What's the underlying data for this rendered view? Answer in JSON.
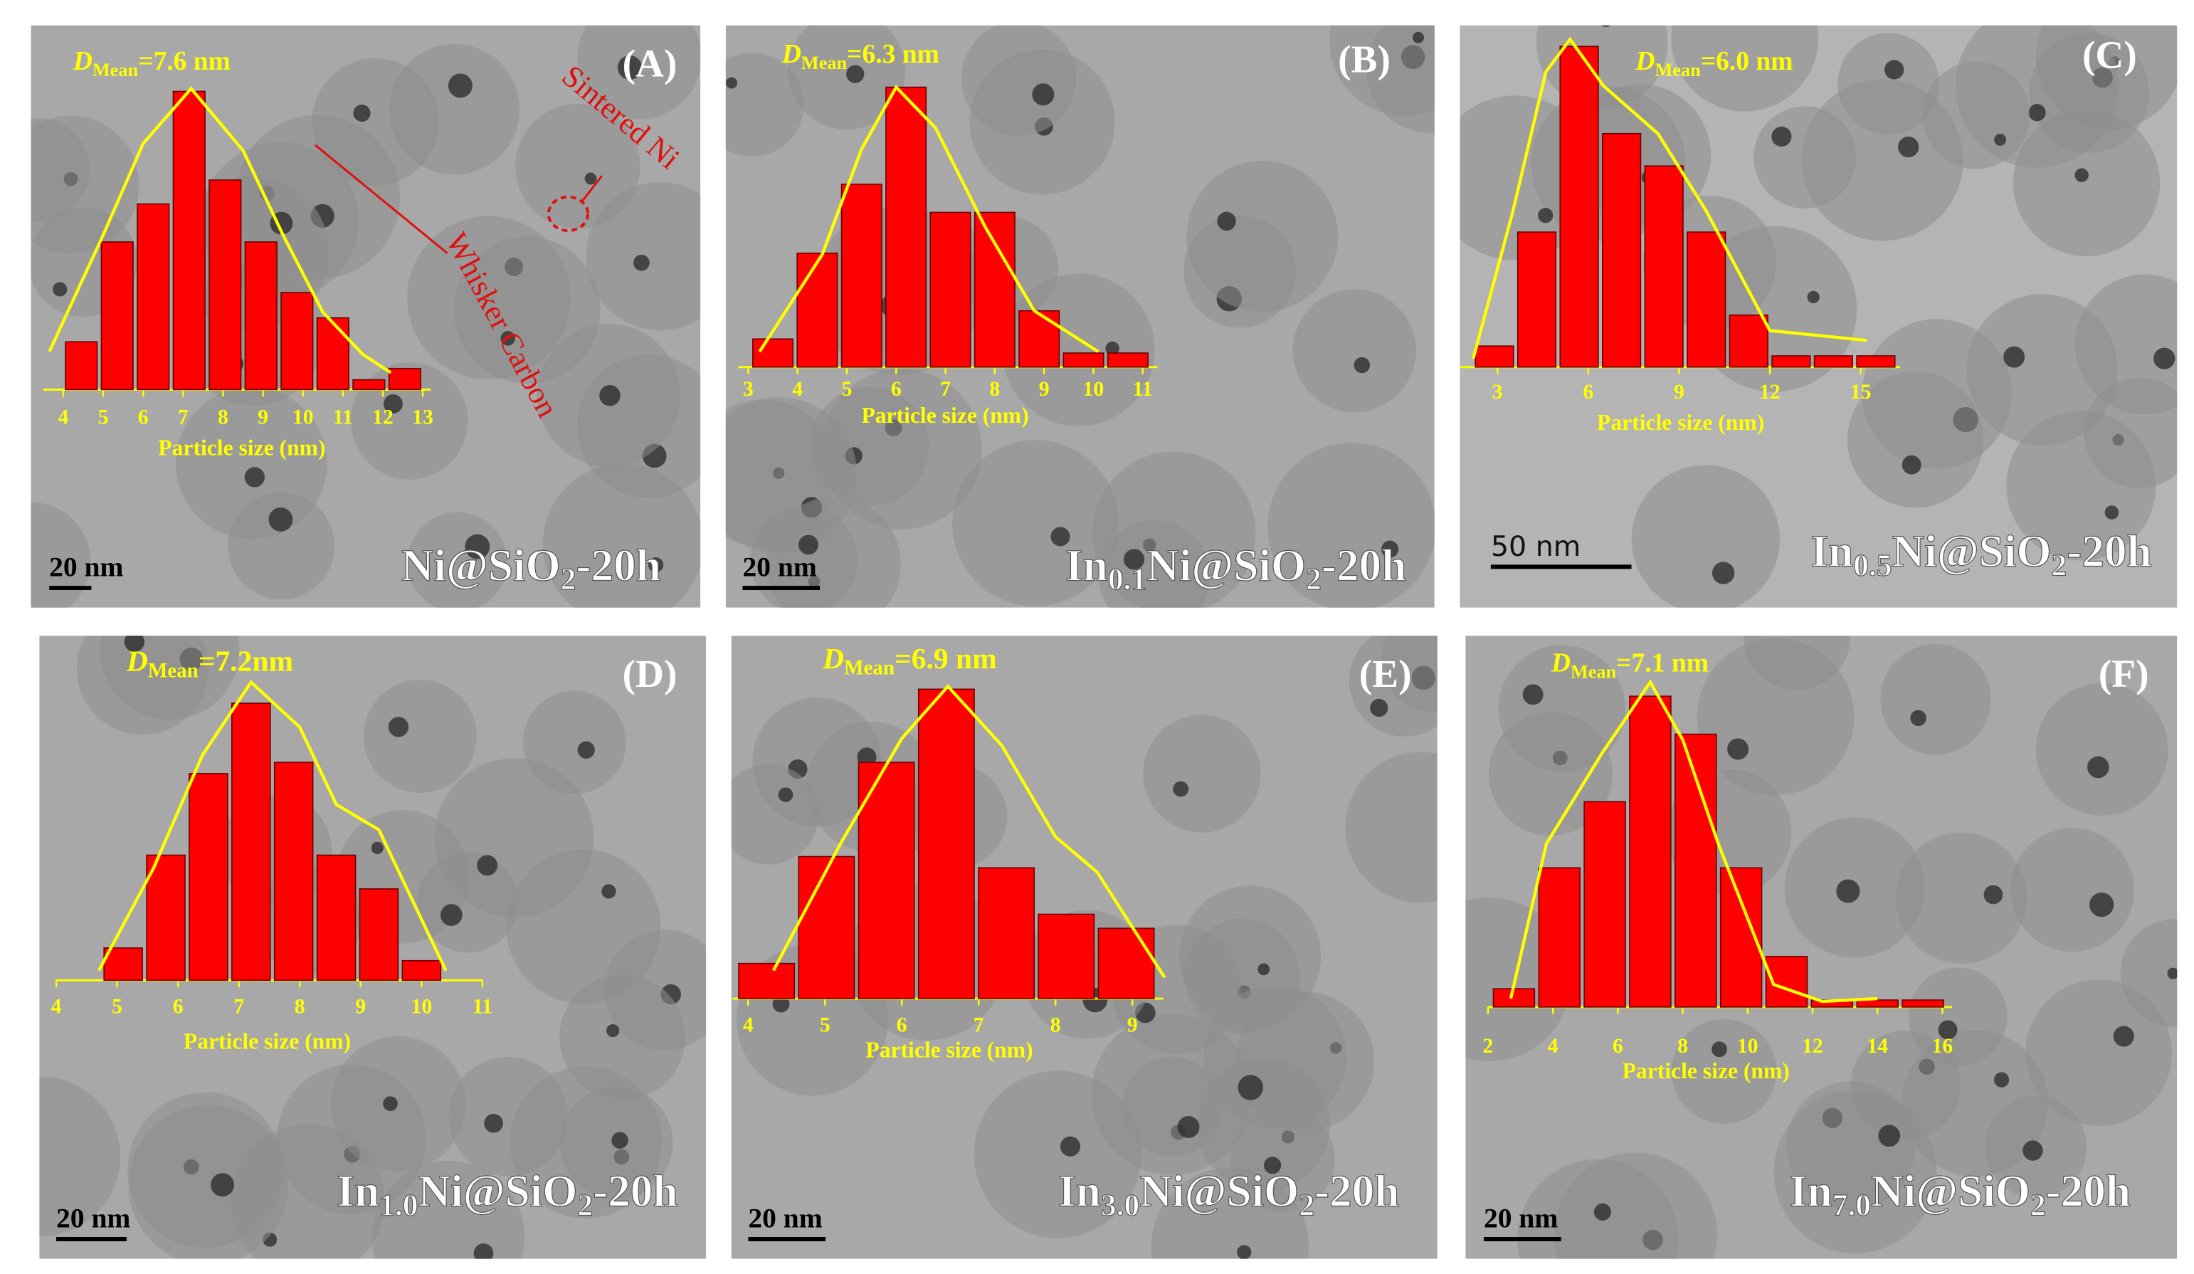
{
  "chart_data": [
    {
      "type": "histogram",
      "panel_label": "(A)",
      "mean_symbol": "D",
      "mean_subscript": "Mean",
      "mean_text": "=7.6 nm",
      "sample": [
        {
          "text": "Ni@SiO"
        },
        {
          "text": "2",
          "sub": true
        },
        {
          "text": "-20h"
        }
      ],
      "scale_bar": "20 nm",
      "x_label": "Particle size (nm)",
      "bins": [
        4,
        4.9,
        5.8,
        6.7,
        7.6,
        8.5,
        9.4,
        10.3,
        11.2,
        12.1,
        13
      ],
      "values": [
        34,
        105,
        132,
        212,
        149,
        105,
        69,
        51,
        7,
        15
      ],
      "color": "#ff0000",
      "xlim": [
        3.5,
        13.2
      ],
      "ylim": [
        0,
        240
      ],
      "xticks": [
        4,
        5,
        6,
        7,
        8,
        9,
        10,
        11,
        12,
        13
      ],
      "fit": {
        "x": [
          3.65,
          5,
          6,
          7.2,
          8.5,
          9.5,
          10.5,
          11.5,
          12.2
        ],
        "values": [
          27,
          110,
          175,
          214,
          170,
          110,
          55,
          25,
          12
        ],
        "color": "#ffff00"
      },
      "annotations": [
        "Sintered Ni",
        "Whisker Carbon"
      ]
    },
    {
      "type": "histogram",
      "panel_label": "(B)",
      "mean_symbol": "D",
      "mean_subscript": "Mean",
      "mean_text": "=6.3 nm",
      "sample": [
        {
          "text": "In"
        },
        {
          "text": "0.1",
          "sub": true
        },
        {
          "text": "Ni@SiO"
        },
        {
          "text": "2",
          "sub": true
        },
        {
          "text": "-20h"
        }
      ],
      "scale_bar": "20 nm",
      "x_label": "Particle size (nm)",
      "bins": [
        3.05,
        3.95,
        4.85,
        5.75,
        6.65,
        7.55,
        8.45,
        9.35,
        10.25,
        11.15
      ],
      "values": [
        20,
        81,
        130,
        199,
        110,
        110,
        40,
        10,
        10
      ],
      "color": "#ff0000",
      "xlim": [
        2.8,
        11.3
      ],
      "ylim": [
        0,
        240
      ],
      "xticks": [
        3,
        4,
        5,
        6,
        7,
        8,
        9,
        10,
        11
      ],
      "fit": {
        "x": [
          3.23,
          4.5,
          5.3,
          6,
          6.8,
          7.8,
          8.8,
          10.1
        ],
        "values": [
          11,
          80,
          155,
          199,
          170,
          100,
          40,
          11
        ],
        "color": "#ffff00"
      }
    },
    {
      "type": "histogram",
      "panel_label": "(C)",
      "mean_symbol": "D",
      "mean_subscript": "Mean",
      "mean_text": "=6.0 nm",
      "sample": [
        {
          "text": "In"
        },
        {
          "text": "0.5",
          "sub": true
        },
        {
          "text": "Ni@SiO"
        },
        {
          "text": "2",
          "sub": true
        },
        {
          "text": "-20h"
        }
      ],
      "scale_bar": "50 nm",
      "x_label": "Particle size (nm)",
      "bins": [
        2.2,
        3.6,
        5.0,
        6.4,
        7.8,
        9.2,
        10.6,
        12.0,
        13.4,
        14.8,
        16.2
      ],
      "values": [
        15,
        96,
        228,
        166,
        143,
        96,
        37,
        8,
        8,
        8
      ],
      "color": "#ff0000",
      "xlim": [
        1.6,
        16.3
      ],
      "ylim": [
        0,
        240
      ],
      "xticks": [
        3,
        6,
        9,
        12,
        15
      ],
      "fit": {
        "x": [
          2.2,
          3.5,
          4.6,
          5.4,
          6.5,
          8.3,
          9.9,
          12,
          15.2
        ],
        "values": [
          6,
          110,
          210,
          233,
          200,
          166,
          111,
          26,
          19
        ],
        "color": "#ffff00"
      }
    },
    {
      "type": "histogram",
      "panel_label": "(D)",
      "mean_symbol": "D",
      "mean_subscript": "Mean",
      "mean_text": "=7.2nm",
      "sample": [
        {
          "text": "In"
        },
        {
          "text": "1.0",
          "sub": true
        },
        {
          "text": "Ni@SiO"
        },
        {
          "text": "2",
          "sub": true
        },
        {
          "text": "-20h"
        }
      ],
      "scale_bar": "20 nm",
      "x_label": "Particle size (nm)",
      "bins": [
        4.75,
        5.45,
        6.15,
        6.85,
        7.55,
        8.25,
        8.95,
        9.65,
        10.35
      ],
      "values": [
        23,
        89,
        147,
        197,
        155,
        89,
        65,
        14
      ],
      "color": "#ff0000",
      "xlim": [
        4,
        11
      ],
      "ylim": [
        0,
        240
      ],
      "xticks": [
        4,
        5,
        6,
        7,
        8,
        9,
        10,
        11
      ],
      "fit": {
        "x": [
          4.7,
          5.6,
          6.4,
          7.2,
          8,
          8.6,
          9.3,
          10.4
        ],
        "values": [
          7,
          80,
          160,
          212,
          180,
          125,
          107,
          7
        ],
        "color": "#ffff00"
      }
    },
    {
      "type": "histogram",
      "panel_label": "(E)",
      "mean_symbol": "D",
      "mean_subscript": "Mean",
      "mean_text": "=6.9 nm",
      "sample": [
        {
          "text": "In"
        },
        {
          "text": "3.0",
          "sub": true
        },
        {
          "text": "Ni@SiO"
        },
        {
          "text": "2",
          "sub": true
        },
        {
          "text": "-20h"
        }
      ],
      "scale_bar": "20 nm",
      "x_label": "Particle size (nm)",
      "bins": [
        3.85,
        4.63,
        5.41,
        6.19,
        6.97,
        7.75,
        8.53,
        9.31
      ],
      "values": [
        25,
        101,
        168,
        220,
        93,
        60,
        50
      ],
      "color": "#ff0000",
      "xlim": [
        3.8,
        9.4
      ],
      "ylim": [
        0,
        240
      ],
      "xticks": [
        4,
        5,
        6,
        7,
        8,
        9
      ],
      "fit": {
        "x": [
          4.33,
          5.2,
          6,
          6.6,
          7.3,
          8,
          8.54,
          9.42
        ],
        "values": [
          20,
          110,
          185,
          222,
          180,
          115,
          90,
          15
        ],
        "color": "#ffff00"
      }
    },
    {
      "type": "histogram",
      "panel_label": "(F)",
      "mean_symbol": "D",
      "mean_subscript": "Mean",
      "mean_text": "=7.1 nm",
      "sample": [
        {
          "text": "In"
        },
        {
          "text": "7.0",
          "sub": true
        },
        {
          "text": "Ni@SiO"
        },
        {
          "text": "2",
          "sub": true
        },
        {
          "text": "-20h"
        }
      ],
      "scale_bar": "20 nm",
      "x_label": "Particle size (nm)",
      "bins": [
        2.1,
        3.5,
        4.9,
        6.3,
        7.7,
        9.1,
        10.5,
        11.9,
        13.3,
        14.7,
        16.1
      ],
      "values": [
        13,
        99,
        146,
        221,
        194,
        99,
        36,
        5,
        5,
        5
      ],
      "color": "#ff0000",
      "xlim": [
        2,
        16.3
      ],
      "ylim": [
        0,
        240
      ],
      "xticks": [
        2,
        4,
        6,
        8,
        10,
        12,
        14,
        16
      ],
      "fit": {
        "x": [
          2.7,
          3.8,
          5.5,
          7,
          8,
          9.1,
          10.8,
          12.3,
          14
        ],
        "values": [
          6,
          116,
          180,
          231,
          190,
          116,
          16,
          4,
          6
        ],
        "color": "#ffff00"
      }
    }
  ]
}
